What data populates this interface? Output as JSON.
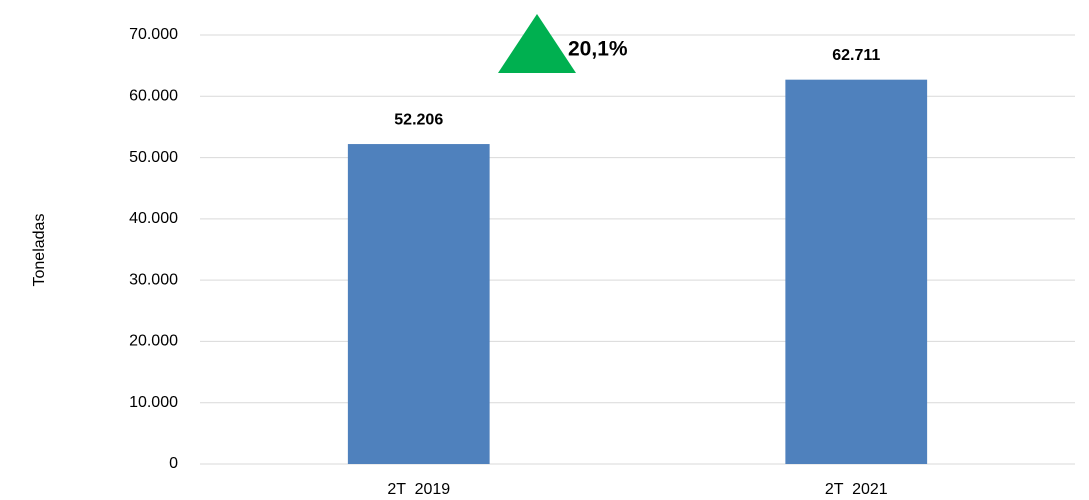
{
  "chart_data": {
    "type": "bar",
    "y_axis_label": "Toneladas",
    "categories": [
      "2T  2019",
      "2T  2021"
    ],
    "values": [
      52206,
      62711
    ],
    "value_labels": [
      "52.206",
      "62.711"
    ],
    "color": "#4f81bd",
    "ylim": [
      0,
      70000
    ],
    "yticks": [
      0,
      {
        "value": 10000,
        "label": "10.000"
      },
      {
        "value": 20000,
        "label": "20.000"
      },
      {
        "value": 30000,
        "label": "30.000"
      },
      {
        "value": 40000,
        "label": "40.000"
      },
      {
        "value": 50000,
        "label": "50.000"
      },
      {
        "value": 60000,
        "label": "60.000"
      },
      {
        "value": 70000,
        "label": "70.000"
      }
    ],
    "grid": true,
    "annotation": "20,1%",
    "annotation_color": "#00b050"
  }
}
